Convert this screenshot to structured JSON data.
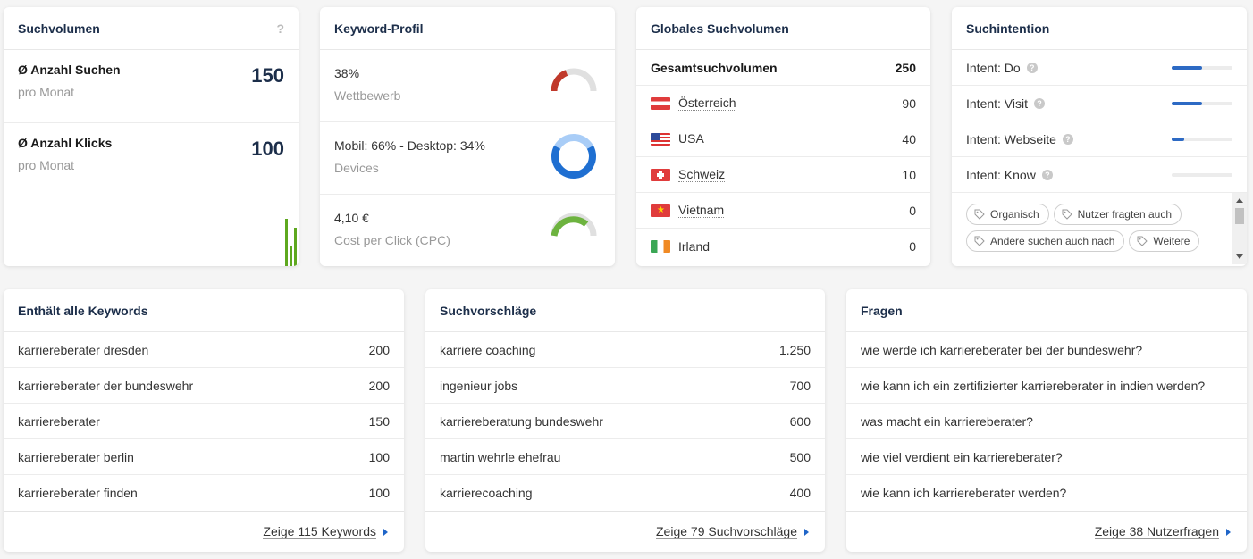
{
  "suchvolumen": {
    "title": "Suchvolumen",
    "help": "?",
    "searches_label": "Ø Anzahl Suchen",
    "searches_sub": "pro Monat",
    "searches_value": "150",
    "clicks_label": "Ø Anzahl Klicks",
    "clicks_sub": "pro Monat",
    "clicks_value": "100",
    "bar_color": "#5ea81f"
  },
  "keyword_profil": {
    "title": "Keyword-Profil",
    "competition_value": "38%",
    "competition_label": "Wettbewerb",
    "competition_fraction": 0.38,
    "devices_value": "Mobil: 66% - Desktop: 34%",
    "devices_label": "Devices",
    "mobile_fraction": 0.66,
    "cpc_value": "4,10 €",
    "cpc_label": "Cost per Click (CPC)",
    "colors": {
      "competition": "#c0392b",
      "mobile": "#1f6fd1",
      "desktop": "#a9cdf7",
      "cpc": "#6db33f",
      "empty": "#e0e0e0"
    }
  },
  "global": {
    "title": "Globales Suchvolumen",
    "total_label": "Gesamtsuchvolumen",
    "total_value": "250",
    "countries": [
      {
        "name": "Österreich",
        "value": "90",
        "flag": "austria-flag"
      },
      {
        "name": "USA",
        "value": "40",
        "flag": "usa-flag"
      },
      {
        "name": "Schweiz",
        "value": "10",
        "flag": "switzerland-flag"
      },
      {
        "name": "Vietnam",
        "value": "0",
        "flag": "vietnam-flag"
      },
      {
        "name": "Irland",
        "value": "0",
        "flag": "ireland-flag"
      }
    ]
  },
  "intention": {
    "title": "Suchintention",
    "intents": [
      {
        "label": "Intent: Do",
        "level": 0.5
      },
      {
        "label": "Intent: Visit",
        "level": 0.5
      },
      {
        "label": "Intent: Webseite",
        "level": 0.2
      },
      {
        "label": "Intent: Know",
        "level": 0.0
      }
    ],
    "tags": [
      "Organisch",
      "Nutzer fragten auch",
      "Andere suchen auch nach",
      "Weitere"
    ]
  },
  "keywords": {
    "title": "Enthält alle Keywords",
    "rows": [
      {
        "text": "karriereberater dresden",
        "value": "200"
      },
      {
        "text": "karriereberater der bundeswehr",
        "value": "200"
      },
      {
        "text": "karriereberater",
        "value": "150"
      },
      {
        "text": "karriereberater berlin",
        "value": "100"
      },
      {
        "text": "karriereberater finden",
        "value": "100"
      }
    ],
    "link": "Zeige 115 Keywords"
  },
  "suggestions": {
    "title": "Suchvorschläge",
    "rows": [
      {
        "text": "karriere coaching",
        "value": "1.250"
      },
      {
        "text": "ingenieur jobs",
        "value": "700"
      },
      {
        "text": "karriereberatung bundeswehr",
        "value": "600"
      },
      {
        "text": "martin wehrle ehefrau",
        "value": "500"
      },
      {
        "text": "karrierecoaching",
        "value": "400"
      }
    ],
    "link": "Zeige 79 Suchvorschläge"
  },
  "questions": {
    "title": "Fragen",
    "rows": [
      "wie werde ich karriereberater bei der bundeswehr?",
      "wie kann ich ein zertifizierter karriereberater in indien werden?",
      "was macht ein karriereberater?",
      "wie viel verdient ein karriereberater?",
      "wie kann ich karriereberater werden?"
    ],
    "link": "Zeige 38 Nutzerfragen"
  },
  "colors": {
    "title": "#1c2e4a",
    "link_arrow": "#1f65c8",
    "background": "#f5f5f5"
  }
}
